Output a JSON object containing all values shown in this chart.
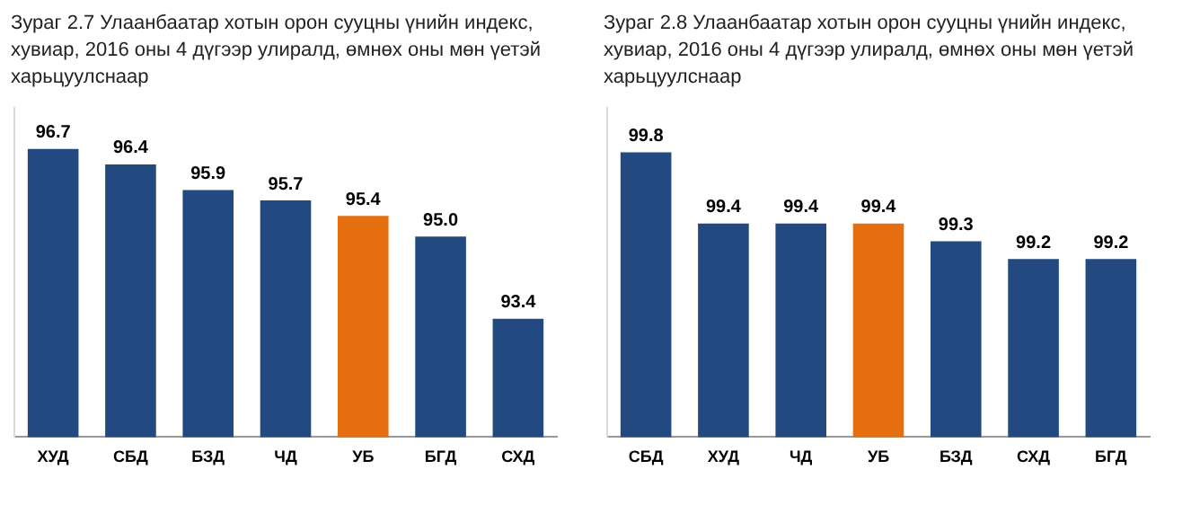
{
  "chart_data": [
    {
      "type": "bar",
      "title": "Зураг 2.7 Улаанбаатар хотын орон сууцны үнийн индекс, хувиар, 2016 оны 4 дүгээр улиралд, өмнөх оны мөн үетэй харьцуулснаар",
      "categories": [
        "ХУД",
        "СБД",
        "БЗД",
        "ЧД",
        "УБ",
        "БГД",
        "СХД"
      ],
      "values": [
        96.7,
        96.4,
        95.9,
        95.7,
        95.4,
        95.0,
        93.4
      ],
      "colors": [
        "#234a80",
        "#234a80",
        "#234a80",
        "#234a80",
        "#e56e0f",
        "#234a80",
        "#234a80"
      ],
      "ylim": [
        91.1,
        97.5
      ],
      "value_labels": [
        "96.7",
        "96.4",
        "95.9",
        "95.7",
        "95.4",
        "95.0",
        "93.4"
      ],
      "grid": false,
      "legend": false,
      "tick_labels": "x"
    },
    {
      "type": "bar",
      "title": "Зураг 2.8 Улаанбаатар хотын орон сууцны үнийн индекс, хувиар, 2016 оны 4 дүгээр улиралд, өмнөх оны мөн үетэй харьцуулснаар",
      "categories": [
        "СБД",
        "ХУД",
        "ЧД",
        "УБ",
        "БЗД",
        "СХД",
        "БГД"
      ],
      "values": [
        99.8,
        99.4,
        99.4,
        99.4,
        99.3,
        99.2,
        99.2
      ],
      "colors": [
        "#234a80",
        "#234a80",
        "#234a80",
        "#e56e0f",
        "#234a80",
        "#234a80",
        "#234a80"
      ],
      "ylim": [
        98.2,
        100.05
      ],
      "value_labels": [
        "99.8",
        "99.4",
        "99.4",
        "99.4",
        "99.3",
        "99.2",
        "99.2"
      ],
      "grid": false,
      "legend": false,
      "tick_labels": "x"
    }
  ]
}
